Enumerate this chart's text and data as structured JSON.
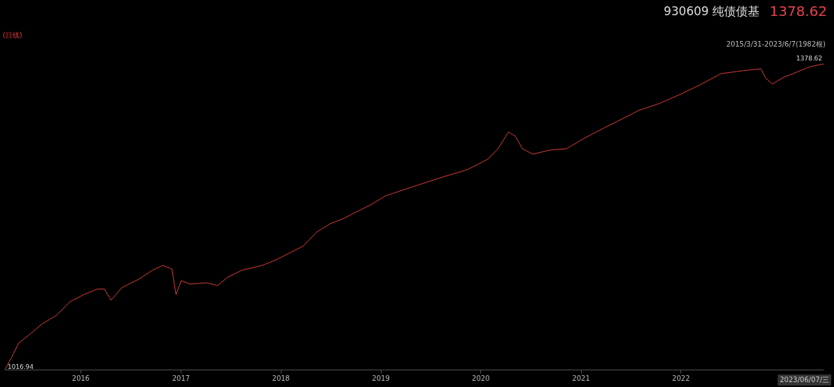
{
  "chart_data": {
    "type": "line",
    "title": "930609 纯债债基",
    "subtitle": "2015/3/31-2023/6/7(1982根)",
    "annotations": [
      "(日线)",
      "1378.62",
      "2023/06/07/三"
    ],
    "xlim": [
      "2015-03-31",
      "2023-06-07"
    ],
    "xticks": [
      "2016",
      "2017",
      "2018",
      "2019",
      "2020",
      "2021",
      "2022"
    ],
    "series": [
      {
        "color": "#e03c3c",
        "x": [
          "2015-03-31",
          "2015-04-25",
          "2015-05-20",
          "2015-06-27",
          "2015-08-15",
          "2015-10-05",
          "2015-11-25",
          "2016-01-13",
          "2016-03-03",
          "2016-03-28",
          "2016-04-22",
          "2016-05-31",
          "2016-07-31",
          "2016-09-20",
          "2016-10-28",
          "2016-11-30",
          "2016-12-15",
          "2017-01-03",
          "2017-02-05",
          "2017-04-06",
          "2017-05-15",
          "2017-06-22",
          "2017-08-12",
          "2017-10-25",
          "2017-12-15",
          "2018-02-03",
          "2018-03-25",
          "2018-05-13",
          "2018-07-01",
          "2018-08-21",
          "2018-10-10",
          "2018-11-30",
          "2019-01-18",
          "2019-04-27",
          "2019-08-06",
          "2019-11-15",
          "2020-01-28",
          "2020-03-05",
          "2020-04-12",
          "2020-05-07",
          "2020-06-02",
          "2020-07-10",
          "2020-09-10",
          "2020-11-10",
          "2021-01-14",
          "2021-03-28",
          "2021-06-12",
          "2021-07-31",
          "2021-10-15",
          "2021-12-30",
          "2022-03-13",
          "2022-05-28",
          "2022-08-12",
          "2022-10-21",
          "2022-11-07",
          "2022-12-02",
          "2023-01-08",
          "2023-02-28",
          "2023-04-18",
          "2023-06-07"
        ],
        "values": [
          1016.94,
          1031.7,
          1048.2,
          1058.0,
          1071.2,
          1081.1,
          1097.5,
          1105.7,
          1112.3,
          1112.3,
          1099.1,
          1113.9,
          1123.8,
          1134.5,
          1140.2,
          1136.1,
          1105.7,
          1122.2,
          1118.1,
          1119.7,
          1116.4,
          1126.3,
          1134.5,
          1140.2,
          1146.8,
          1155.0,
          1163.3,
          1179.7,
          1189.6,
          1196.1,
          1204.4,
          1212.6,
          1222.4,
          1233.1,
          1243.8,
          1253.7,
          1266.0,
          1278.3,
          1298.1,
          1293.1,
          1278.3,
          1271.8,
          1276.7,
          1278.3,
          1290.7,
          1303.0,
          1315.3,
          1323.5,
          1331.8,
          1342.5,
          1353.9,
          1367.1,
          1370.4,
          1372.9,
          1362.2,
          1354.8,
          1362.2,
          1368.8,
          1375.3,
          1378.62
        ],
        "value_labels": [
          "1016.94",
          null,
          null,
          null,
          null,
          null,
          null,
          null,
          null,
          null,
          null,
          null,
          null,
          null,
          null,
          null,
          null,
          null,
          null,
          null,
          null,
          null,
          null,
          null,
          null,
          null,
          null,
          null,
          null,
          null,
          null,
          null,
          null,
          null,
          null,
          null,
          null,
          null,
          null,
          null,
          null,
          null,
          null,
          null,
          null,
          null,
          null,
          null,
          null,
          null,
          null,
          null,
          null,
          null,
          null,
          null,
          null,
          null,
          null,
          "1378.62"
        ]
      }
    ]
  }
}
